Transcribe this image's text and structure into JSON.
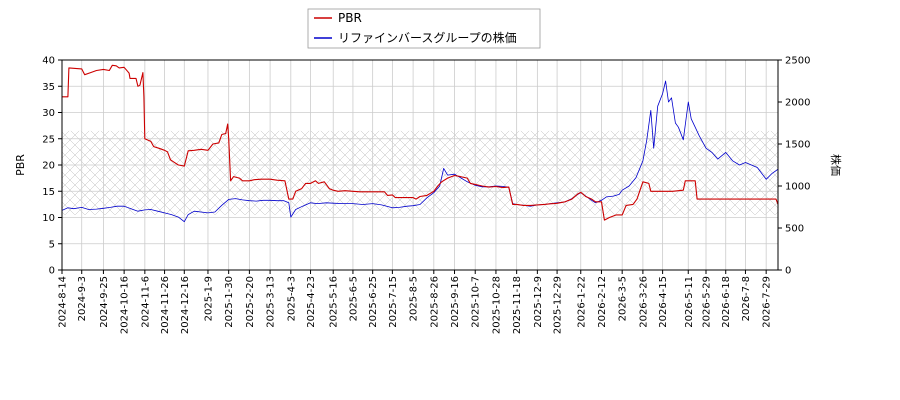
{
  "chart_data": {
    "type": "line",
    "title": "",
    "legend": {
      "placement": "top-center",
      "entries": [
        {
          "name": "PBR",
          "color": "#cc0000"
        },
        {
          "name": "リファインバースグループの株価",
          "color": "#0000cc"
        }
      ]
    },
    "xlabel": "",
    "ylabel_left": "PBR",
    "ylabel_right": "株価",
    "ylim_left": [
      0,
      40
    ],
    "ylim_right": [
      0,
      2500
    ],
    "yticks_left": [
      "0",
      "5",
      "10",
      "15",
      "20",
      "25",
      "30",
      "35",
      "40"
    ],
    "yticks_right": [
      "0",
      "500",
      "1000",
      "1500",
      "2000",
      "2500"
    ],
    "grid": true,
    "hatch_band_left": [
      10.5,
      26.5
    ],
    "x_range": [
      "2024-08-14",
      "2026-08-10"
    ],
    "x_ticks": [
      "2024-8-14",
      "2024-9-3",
      "2024-9-25",
      "2024-10-16",
      "2024-11-6",
      "2024-11-26",
      "2024-12-16",
      "2025-1-9",
      "2025-1-30",
      "2025-2-20",
      "2025-3-13",
      "2025-4-3",
      "2025-4-23",
      "2025-5-16",
      "2025-6-5",
      "2025-6-25",
      "2025-7-15",
      "2025-8-5",
      "2025-8-26",
      "2025-9-16",
      "2025-10-7",
      "2025-10-28",
      "2025-11-18",
      "2025-12-9",
      "2025-12-29",
      "2026-1-22",
      "2026-2-12",
      "2026-3-5",
      "2026-3-26",
      "2026-4-15",
      "2026-5-11",
      "2026-5-29",
      "2026-6-18",
      "2026-7-8",
      "2026-7-29"
    ],
    "series": [
      {
        "name": "PBR",
        "axis": "left",
        "color": "#cc0000",
        "points": [
          [
            "2024-08-14",
            33.0
          ],
          [
            "2024-08-20",
            33.0
          ],
          [
            "2024-08-21",
            38.5
          ],
          [
            "2024-09-03",
            38.3
          ],
          [
            "2024-09-06",
            37.2
          ],
          [
            "2024-09-12",
            37.6
          ],
          [
            "2024-09-18",
            38.0
          ],
          [
            "2024-09-25",
            38.2
          ],
          [
            "2024-10-01",
            38.0
          ],
          [
            "2024-10-04",
            39.0
          ],
          [
            "2024-10-08",
            38.9
          ],
          [
            "2024-10-11",
            38.5
          ],
          [
            "2024-10-16",
            38.6
          ],
          [
            "2024-10-21",
            37.5
          ],
          [
            "2024-10-22",
            36.5
          ],
          [
            "2024-10-28",
            36.5
          ],
          [
            "2024-10-30",
            35.0
          ],
          [
            "2024-11-01",
            35.2
          ],
          [
            "2024-11-04",
            37.6
          ],
          [
            "2024-11-05",
            33.0
          ],
          [
            "2024-11-06",
            25.0
          ],
          [
            "2024-11-12",
            24.5
          ],
          [
            "2024-11-15",
            23.5
          ],
          [
            "2024-11-20",
            23.2
          ],
          [
            "2024-11-26",
            22.8
          ],
          [
            "2024-11-29",
            22.5
          ],
          [
            "2024-12-02",
            21.0
          ],
          [
            "2024-12-06",
            20.5
          ],
          [
            "2024-12-10",
            20.0
          ],
          [
            "2024-12-16",
            19.8
          ],
          [
            "2024-12-20",
            22.7
          ],
          [
            "2024-12-26",
            22.8
          ],
          [
            "2025-01-02",
            23.0
          ],
          [
            "2025-01-09",
            22.8
          ],
          [
            "2025-01-14",
            24.0
          ],
          [
            "2025-01-20",
            24.2
          ],
          [
            "2025-01-23",
            25.8
          ],
          [
            "2025-01-27",
            26.0
          ],
          [
            "2025-01-29",
            27.8
          ],
          [
            "2025-01-30",
            25.0
          ],
          [
            "2025-02-01",
            17.0
          ],
          [
            "2025-02-04",
            17.8
          ],
          [
            "2025-02-10",
            17.5
          ],
          [
            "2025-02-13",
            17.0
          ],
          [
            "2025-02-20",
            17.0
          ],
          [
            "2025-02-25",
            17.2
          ],
          [
            "2025-03-04",
            17.3
          ],
          [
            "2025-03-13",
            17.3
          ],
          [
            "2025-03-20",
            17.1
          ],
          [
            "2025-03-28",
            17.0
          ],
          [
            "2025-04-01",
            13.5
          ],
          [
            "2025-04-05",
            13.5
          ],
          [
            "2025-04-08",
            15.0
          ],
          [
            "2025-04-14",
            15.5
          ],
          [
            "2025-04-18",
            16.5
          ],
          [
            "2025-04-23",
            16.5
          ],
          [
            "2025-04-28",
            17.0
          ],
          [
            "2025-05-01",
            16.5
          ],
          [
            "2025-05-07",
            16.8
          ],
          [
            "2025-05-12",
            15.5
          ],
          [
            "2025-05-16",
            15.2
          ],
          [
            "2025-05-21",
            15.0
          ],
          [
            "2025-05-28",
            15.1
          ],
          [
            "2025-06-05",
            15.0
          ],
          [
            "2025-06-12",
            14.9
          ],
          [
            "2025-06-25",
            14.9
          ],
          [
            "2025-07-07",
            14.9
          ],
          [
            "2025-07-10",
            14.2
          ],
          [
            "2025-07-15",
            14.3
          ],
          [
            "2025-07-18",
            13.8
          ],
          [
            "2025-07-25",
            13.8
          ],
          [
            "2025-08-05",
            13.8
          ],
          [
            "2025-08-08",
            13.5
          ],
          [
            "2025-08-12",
            14.0
          ],
          [
            "2025-08-19",
            14.2
          ],
          [
            "2025-08-26",
            15.0
          ],
          [
            "2025-08-30",
            16.0
          ],
          [
            "2025-09-03",
            16.8
          ],
          [
            "2025-09-09",
            17.5
          ],
          [
            "2025-09-16",
            18.0
          ],
          [
            "2025-09-22",
            17.8
          ],
          [
            "2025-09-29",
            17.5
          ],
          [
            "2025-10-02",
            16.5
          ],
          [
            "2025-10-07",
            16.3
          ],
          [
            "2025-10-14",
            16.0
          ],
          [
            "2025-10-21",
            15.8
          ],
          [
            "2025-10-28",
            15.9
          ],
          [
            "2025-11-04",
            15.7
          ],
          [
            "2025-11-10",
            15.8
          ],
          [
            "2025-11-14",
            12.5
          ],
          [
            "2025-11-18",
            12.5
          ],
          [
            "2025-11-25",
            12.3
          ],
          [
            "2025-12-02",
            12.3
          ],
          [
            "2025-12-09",
            12.4
          ],
          [
            "2025-12-16",
            12.5
          ],
          [
            "2025-12-22",
            12.6
          ],
          [
            "2025-12-29",
            12.7
          ],
          [
            "2026-01-06",
            13.0
          ],
          [
            "2026-01-13",
            13.5
          ],
          [
            "2026-01-19",
            14.5
          ],
          [
            "2026-01-22",
            14.8
          ],
          [
            "2026-01-27",
            14.0
          ],
          [
            "2026-02-02",
            13.5
          ],
          [
            "2026-02-06",
            13.0
          ],
          [
            "2026-02-12",
            13.0
          ],
          [
            "2026-02-15",
            9.5
          ],
          [
            "2026-02-20",
            10.0
          ],
          [
            "2026-02-27",
            10.5
          ],
          [
            "2026-03-04",
            10.5
          ],
          [
            "2026-03-05",
            10.5
          ],
          [
            "2026-03-09",
            12.3
          ],
          [
            "2026-03-16",
            12.5
          ],
          [
            "2026-03-20",
            13.5
          ],
          [
            "2026-03-26",
            16.8
          ],
          [
            "2026-04-01",
            16.5
          ],
          [
            "2026-04-03",
            15.0
          ],
          [
            "2026-04-15",
            15.0
          ],
          [
            "2026-04-25",
            15.0
          ],
          [
            "2026-05-06",
            15.2
          ],
          [
            "2026-05-08",
            17.0
          ],
          [
            "2026-05-13",
            17.0
          ],
          [
            "2026-05-18",
            17.0
          ],
          [
            "2026-05-20",
            13.5
          ],
          [
            "2026-05-29",
            13.5
          ],
          [
            "2026-06-18",
            13.5
          ],
          [
            "2026-07-08",
            13.5
          ],
          [
            "2026-07-29",
            13.5
          ],
          [
            "2026-08-08",
            13.5
          ],
          [
            "2026-08-10",
            12.5
          ]
        ]
      },
      {
        "name": "リファインバースグループの株価",
        "axis": "right",
        "color": "#0000cc",
        "points": [
          [
            "2024-08-14",
            710
          ],
          [
            "2024-08-20",
            740
          ],
          [
            "2024-08-26",
            730
          ],
          [
            "2024-09-03",
            745
          ],
          [
            "2024-09-10",
            720
          ],
          [
            "2024-09-18",
            725
          ],
          [
            "2024-09-25",
            735
          ],
          [
            "2024-10-02",
            745
          ],
          [
            "2024-10-09",
            760
          ],
          [
            "2024-10-16",
            760
          ],
          [
            "2024-10-23",
            730
          ],
          [
            "2024-10-30",
            700
          ],
          [
            "2024-11-06",
            715
          ],
          [
            "2024-11-12",
            720
          ],
          [
            "2024-11-19",
            700
          ],
          [
            "2024-11-26",
            680
          ],
          [
            "2024-12-03",
            660
          ],
          [
            "2024-12-10",
            630
          ],
          [
            "2024-12-16",
            575
          ],
          [
            "2024-12-20",
            660
          ],
          [
            "2024-12-26",
            700
          ],
          [
            "2025-01-09",
            680
          ],
          [
            "2025-01-16",
            690
          ],
          [
            "2025-01-23",
            770
          ],
          [
            "2025-01-30",
            840
          ],
          [
            "2025-02-06",
            850
          ],
          [
            "2025-02-13",
            835
          ],
          [
            "2025-02-20",
            825
          ],
          [
            "2025-02-27",
            820
          ],
          [
            "2025-03-06",
            830
          ],
          [
            "2025-03-13",
            830
          ],
          [
            "2025-03-20",
            825
          ],
          [
            "2025-03-27",
            825
          ],
          [
            "2025-04-01",
            800
          ],
          [
            "2025-04-03",
            630
          ],
          [
            "2025-04-08",
            720
          ],
          [
            "2025-04-15",
            760
          ],
          [
            "2025-04-23",
            800
          ],
          [
            "2025-04-30",
            790
          ],
          [
            "2025-05-09",
            800
          ],
          [
            "2025-05-16",
            795
          ],
          [
            "2025-05-26",
            790
          ],
          [
            "2025-06-05",
            790
          ],
          [
            "2025-06-15",
            780
          ],
          [
            "2025-06-25",
            790
          ],
          [
            "2025-07-04",
            775
          ],
          [
            "2025-07-15",
            740
          ],
          [
            "2025-07-22",
            745
          ],
          [
            "2025-07-30",
            760
          ],
          [
            "2025-08-05",
            765
          ],
          [
            "2025-08-12",
            780
          ],
          [
            "2025-08-19",
            860
          ],
          [
            "2025-08-26",
            920
          ],
          [
            "2025-09-01",
            1000
          ],
          [
            "2025-09-05",
            1210
          ],
          [
            "2025-09-09",
            1130
          ],
          [
            "2025-09-16",
            1140
          ],
          [
            "2025-09-22",
            1100
          ],
          [
            "2025-09-29",
            1050
          ],
          [
            "2025-10-07",
            1010
          ],
          [
            "2025-10-14",
            990
          ],
          [
            "2025-10-21",
            990
          ],
          [
            "2025-10-28",
            1000
          ],
          [
            "2025-11-04",
            995
          ],
          [
            "2025-11-10",
            985
          ],
          [
            "2025-11-14",
            790
          ],
          [
            "2025-11-18",
            780
          ],
          [
            "2025-11-25",
            770
          ],
          [
            "2025-12-02",
            760
          ],
          [
            "2025-12-09",
            775
          ],
          [
            "2025-12-16",
            780
          ],
          [
            "2025-12-22",
            790
          ],
          [
            "2025-12-29",
            800
          ],
          [
            "2026-01-06",
            810
          ],
          [
            "2026-01-13",
            850
          ],
          [
            "2026-01-19",
            900
          ],
          [
            "2026-01-22",
            920
          ],
          [
            "2026-01-27",
            880
          ],
          [
            "2026-02-02",
            830
          ],
          [
            "2026-02-06",
            800
          ],
          [
            "2026-02-12",
            830
          ],
          [
            "2026-02-17",
            870
          ],
          [
            "2026-02-24",
            880
          ],
          [
            "2026-03-02",
            900
          ],
          [
            "2026-03-05",
            950
          ],
          [
            "2026-03-12",
            1000
          ],
          [
            "2026-03-19",
            1100
          ],
          [
            "2026-03-26",
            1300
          ],
          [
            "2026-03-30",
            1550
          ],
          [
            "2026-04-03",
            1900
          ],
          [
            "2026-04-06",
            1450
          ],
          [
            "2026-04-10",
            1950
          ],
          [
            "2026-04-15",
            2100
          ],
          [
            "2026-04-18",
            2250
          ],
          [
            "2026-04-21",
            2000
          ],
          [
            "2026-04-24",
            2050
          ],
          [
            "2026-04-28",
            1750
          ],
          [
            "2026-05-01",
            1700
          ],
          [
            "2026-05-06",
            1550
          ],
          [
            "2026-05-11",
            2000
          ],
          [
            "2026-05-14",
            1800
          ],
          [
            "2026-05-18",
            1700
          ],
          [
            "2026-05-22",
            1600
          ],
          [
            "2026-05-29",
            1450
          ],
          [
            "2026-06-04",
            1400
          ],
          [
            "2026-06-10",
            1320
          ],
          [
            "2026-06-18",
            1400
          ],
          [
            "2026-06-25",
            1300
          ],
          [
            "2026-07-02",
            1250
          ],
          [
            "2026-07-08",
            1280
          ],
          [
            "2026-07-14",
            1250
          ],
          [
            "2026-07-20",
            1220
          ],
          [
            "2026-07-29",
            1080
          ],
          [
            "2026-08-04",
            1150
          ],
          [
            "2026-08-10",
            1200
          ]
        ]
      }
    ]
  }
}
